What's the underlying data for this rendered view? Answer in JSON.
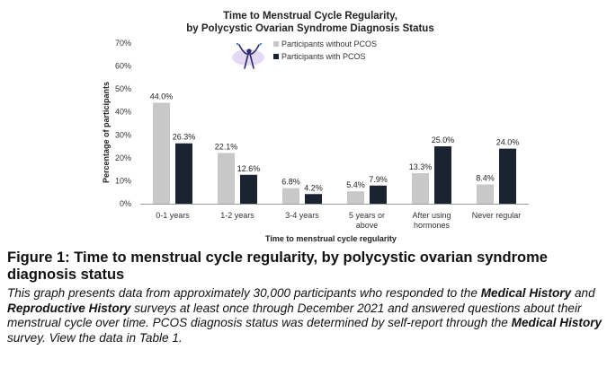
{
  "chart_data": {
    "type": "bar",
    "title": [
      "Time to Menstrual Cycle Regularity,",
      "by Polycystic Ovarian Syndrome Diagnosis Status"
    ],
    "xlabel": "Time to menstrual cycle regularity",
    "ylabel": "Percentage of participants",
    "ylim": [
      0,
      70
    ],
    "yticks": [
      "0%",
      "10%",
      "20%",
      "30%",
      "40%",
      "50%",
      "60%",
      "70%"
    ],
    "grid": false,
    "legend_position": "top-right",
    "categories": [
      [
        "0-1 years"
      ],
      [
        "1-2 years"
      ],
      [
        "3-4 years"
      ],
      [
        "5 years or",
        "above"
      ],
      [
        "After using",
        "hormones"
      ],
      [
        "Never regular"
      ]
    ],
    "series": [
      {
        "name": "Participants without PCOS",
        "color": "#c8c8c8",
        "values": [
          44.0,
          22.1,
          6.8,
          5.4,
          13.3,
          8.4
        ],
        "labels": [
          "44.0%",
          "22.1%",
          "6.8%",
          "5.4%",
          "13.3%",
          "8.4%"
        ]
      },
      {
        "name": "Participants with PCOS",
        "color": "#1b2330",
        "values": [
          26.3,
          12.6,
          4.2,
          7.9,
          25.0,
          24.0
        ],
        "labels": [
          "26.3%",
          "12.6%",
          "4.2%",
          "7.9%",
          "25.0%",
          "24.0%"
        ]
      }
    ],
    "legend_icon": "person-stretching-logo"
  },
  "figure": {
    "title": "Figure 1: Time to menstrual cycle regularity, by polycystic ovarian syndrome diagnosis status",
    "description": {
      "t1": "This graph presents data from approximately 30,000 participants who responded to the ",
      "b1": "Medical History",
      "t2": " and ",
      "b2": "Reproductive History",
      "t3": " surveys at least once through December 2021 and answered questions about their menstrual cycle over time. PCOS diagnosis status was determined by self-report through the ",
      "b3": "Medical History",
      "t4": " survey. View the data in Table 1."
    }
  }
}
